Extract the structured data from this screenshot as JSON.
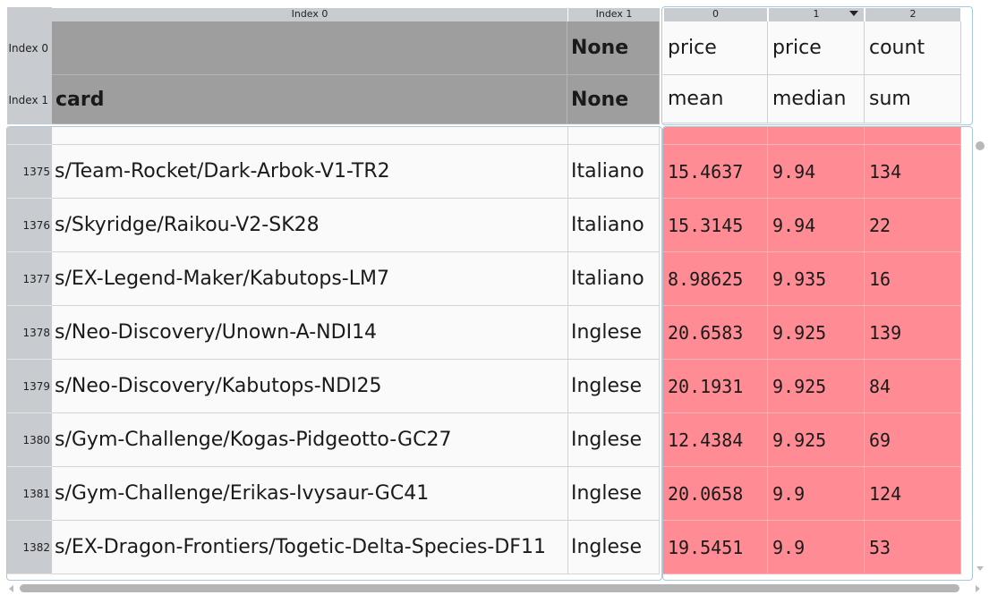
{
  "header": {
    "index_level_labels": [
      "Index 0",
      "Index 1"
    ],
    "index_col_headers": [
      "Index 0",
      "Index 1"
    ],
    "index_names_level0": [
      "",
      "None"
    ],
    "index_names_level1": [
      "card",
      "None"
    ],
    "col_numbers": [
      "0",
      "1",
      "2"
    ],
    "columns_level0": [
      "price",
      "price",
      "count"
    ],
    "columns_level1": [
      "mean",
      "median",
      "sum"
    ]
  },
  "rows": [
    {
      "num": "1375",
      "card": "s/Team-Rocket/Dark-Arbok-V1-TR2",
      "lang": "Italiano",
      "mean": "15.4637",
      "median": "9.94",
      "sum": "134"
    },
    {
      "num": "1376",
      "card": "s/Skyridge/Raikou-V2-SK28",
      "lang": "Italiano",
      "mean": "15.3145",
      "median": "9.94",
      "sum": "22"
    },
    {
      "num": "1377",
      "card": "s/EX-Legend-Maker/Kabutops-LM7",
      "lang": "Italiano",
      "mean": "8.98625",
      "median": "9.935",
      "sum": "16"
    },
    {
      "num": "1378",
      "card": "s/Neo-Discovery/Unown-A-NDI14",
      "lang": "Inglese",
      "mean": "20.6583",
      "median": "9.925",
      "sum": "139"
    },
    {
      "num": "1379",
      "card": "s/Neo-Discovery/Kabutops-NDI25",
      "lang": "Inglese",
      "mean": "20.1931",
      "median": "9.925",
      "sum": "84"
    },
    {
      "num": "1380",
      "card": "s/Gym-Challenge/Kogas-Pidgeotto-GC27",
      "lang": "Inglese",
      "mean": "12.4384",
      "median": "9.925",
      "sum": "69"
    },
    {
      "num": "1381",
      "card": "s/Gym-Challenge/Erikas-Ivysaur-GC41",
      "lang": "Inglese",
      "mean": "20.0658",
      "median": "9.9",
      "sum": "124"
    },
    {
      "num": "1382",
      "card": "s/EX-Dragon-Frontiers/Togetic-Delta-Species-DF11",
      "lang": "Inglese",
      "mean": "19.5451",
      "median": "9.9",
      "sum": "53"
    }
  ],
  "colors": {
    "highlight": "#ff8c94",
    "header_gray": "#9e9e9e"
  }
}
